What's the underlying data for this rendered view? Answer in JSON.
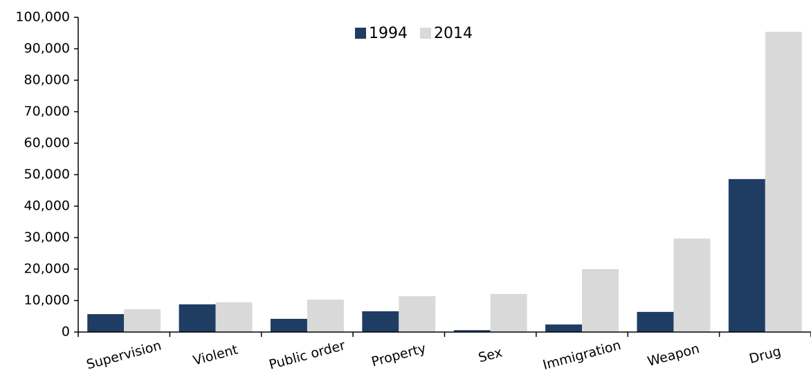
{
  "chart_data": {
    "type": "bar",
    "categories": [
      "Supervision",
      "Violent",
      "Public order",
      "Property",
      "Sex",
      "Immigration",
      "Weapon",
      "Drug"
    ],
    "series": [
      {
        "name": "1994",
        "color": "#1f3d63",
        "values": [
          5700,
          8800,
          4200,
          6600,
          600,
          2400,
          6400,
          48600
        ]
      },
      {
        "name": "2014",
        "color": "#d9d9d9",
        "values": [
          7250,
          9450,
          10300,
          11400,
          12100,
          20000,
          29700,
          95400
        ]
      }
    ],
    "ylim": [
      0,
      100000
    ],
    "yticks": [
      0,
      {
        "value": 10000,
        "label": "10,000"
      },
      {
        "value": 20000,
        "label": "20,000"
      },
      {
        "value": 30000,
        "label": "30,000"
      },
      {
        "value": 40000,
        "label": "40,000"
      },
      {
        "value": 50000,
        "label": "50,000"
      },
      {
        "value": 60000,
        "label": "60,000"
      },
      {
        "value": 70000,
        "label": "70,000"
      },
      {
        "value": 80000,
        "label": "80,000"
      },
      {
        "value": 90000,
        "label": "90,000"
      },
      {
        "value": 100000,
        "label": "100,000"
      }
    ],
    "legend": "top",
    "grid": false
  }
}
